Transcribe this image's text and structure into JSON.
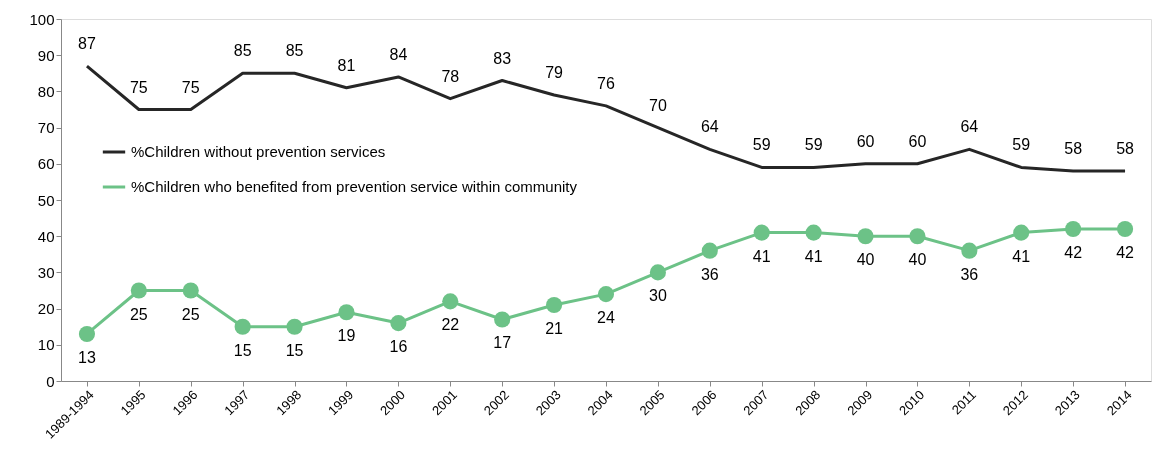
{
  "chart_data": {
    "type": "line",
    "categories": [
      "1989-1994",
      "1995",
      "1996",
      "1997",
      "1998",
      "1999",
      "2000",
      "2001",
      "2002",
      "2003",
      "2004",
      "2005",
      "2006",
      "2007",
      "2008",
      "2009",
      "2010",
      "2011",
      "2012",
      "2013",
      "2014"
    ],
    "series": [
      {
        "name": "%Children without prevention services",
        "color": "#262626",
        "marker": "none",
        "values": [
          87,
          75,
          75,
          85,
          85,
          81,
          84,
          78,
          83,
          79,
          76,
          70,
          64,
          59,
          59,
          60,
          60,
          64,
          59,
          58,
          58
        ]
      },
      {
        "name": "%Children who benefited from prevention service within community",
        "color": "#6cc287",
        "marker": "circle",
        "values": [
          13,
          25,
          25,
          15,
          15,
          19,
          16,
          22,
          17,
          21,
          24,
          30,
          36,
          41,
          41,
          40,
          40,
          36,
          41,
          42,
          42
        ]
      }
    ],
    "ylim": [
      0,
      100
    ],
    "yticks": [
      0,
      10,
      20,
      30,
      40,
      50,
      60,
      70,
      80,
      90,
      100
    ],
    "data_labels": true,
    "grid": false,
    "legend": "left"
  }
}
